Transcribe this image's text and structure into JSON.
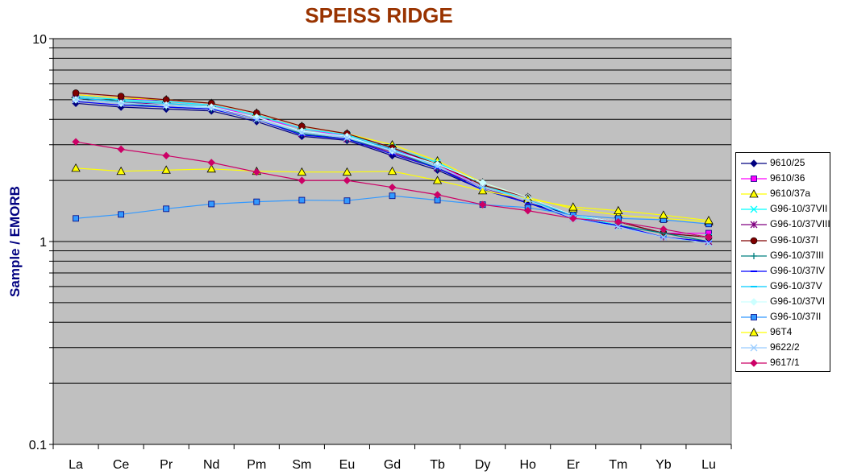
{
  "chart_data": {
    "type": "line",
    "title": "SPEISS RIDGE",
    "ylabel": "Sample / EMORB",
    "xlabel": "",
    "y_scale": "log",
    "ylim": [
      0.1,
      10
    ],
    "y_ticks": [
      "0.1",
      "1",
      "10"
    ],
    "categories": [
      "La",
      "Ce",
      "Pr",
      "Nd",
      "Pm",
      "Sm",
      "Eu",
      "Gd",
      "Tb",
      "Dy",
      "Ho",
      "Er",
      "Tm",
      "Yb",
      "Lu"
    ],
    "legend_position": "right",
    "plot_background": "#c0c0c0",
    "series": [
      {
        "name": "9610/25",
        "color": "#000080",
        "marker": "diamond",
        "values": [
          4.8,
          4.6,
          4.5,
          4.4,
          3.9,
          3.3,
          3.15,
          2.65,
          2.25,
          1.8,
          1.55,
          1.35,
          1.25,
          1.1,
          1.05
        ]
      },
      {
        "name": "9610/36",
        "color": "#ff00ff",
        "marker": "square",
        "values": [
          5.3,
          5.1,
          4.9,
          4.7,
          4.1,
          3.6,
          3.3,
          2.85,
          2.4,
          1.85,
          1.6,
          1.35,
          1.25,
          1.1,
          1.1
        ]
      },
      {
        "name": "9610/37a",
        "color": "#ffff00",
        "marker": "triangle",
        "values": [
          5.3,
          5.1,
          5.0,
          4.8,
          4.3,
          3.7,
          3.4,
          3.0,
          2.5,
          1.95,
          1.65,
          1.45,
          1.35,
          1.3,
          1.25
        ]
      },
      {
        "name": "G96-10/37VII",
        "color": "#00ffff",
        "marker": "x",
        "values": [
          5.2,
          5.0,
          4.9,
          4.7,
          4.2,
          3.6,
          3.35,
          2.9,
          2.45,
          1.9,
          1.6,
          1.35,
          1.2,
          1.1,
          1.05
        ]
      },
      {
        "name": "G96-10/37VIII",
        "color": "#800080",
        "marker": "star",
        "values": [
          5.1,
          4.9,
          4.7,
          4.6,
          4.0,
          3.4,
          3.2,
          2.75,
          2.3,
          1.85,
          1.55,
          1.3,
          1.2,
          1.05,
          1.0
        ]
      },
      {
        "name": "G96-10/37I",
        "color": "#800000",
        "marker": "circle",
        "values": [
          5.4,
          5.2,
          5.0,
          4.8,
          4.3,
          3.7,
          3.4,
          2.9,
          2.4,
          1.9,
          1.65,
          1.35,
          1.25,
          1.1,
          1.05
        ]
      },
      {
        "name": "G96-10/37III",
        "color": "#008080",
        "marker": "plus",
        "values": [
          5.0,
          4.8,
          4.6,
          4.5,
          4.0,
          3.4,
          3.2,
          2.8,
          2.3,
          1.8,
          1.55,
          1.3,
          1.2,
          1.1,
          1.0
        ]
      },
      {
        "name": "G96-10/37IV",
        "color": "#0000ff",
        "marker": "dash",
        "values": [
          4.9,
          4.7,
          4.6,
          4.5,
          4.0,
          3.35,
          3.2,
          2.7,
          2.3,
          1.8,
          1.55,
          1.3,
          1.2,
          1.05,
          1.0
        ]
      },
      {
        "name": "G96-10/37V",
        "color": "#00ccff",
        "marker": "dash",
        "values": [
          5.1,
          4.9,
          4.8,
          4.6,
          4.1,
          3.5,
          3.3,
          2.85,
          2.35,
          1.85,
          1.6,
          1.35,
          1.25,
          1.15,
          1.05
        ]
      },
      {
        "name": "G96-10/37VI",
        "color": "#ccffff",
        "marker": "diamond",
        "values": [
          5.0,
          4.8,
          4.7,
          4.6,
          4.1,
          3.5,
          3.3,
          2.8,
          2.4,
          1.95,
          1.65,
          1.35,
          1.25,
          1.15,
          1.05
        ]
      },
      {
        "name": "G96-10/37II",
        "color": "#3399ff",
        "marker": "square",
        "values": [
          1.3,
          1.36,
          1.45,
          1.53,
          1.57,
          1.6,
          1.59,
          1.68,
          1.6,
          1.52,
          1.47,
          1.35,
          1.3,
          1.28,
          1.22
        ]
      },
      {
        "name": "96T4",
        "color": "#ffff00",
        "marker": "triangle",
        "values": [
          2.3,
          2.22,
          2.25,
          2.28,
          2.22,
          2.2,
          2.2,
          2.22,
          2.0,
          1.78,
          1.62,
          1.48,
          1.42,
          1.35,
          1.27
        ]
      },
      {
        "name": "9622/2",
        "color": "#99ccff",
        "marker": "x",
        "values": [
          5.0,
          4.8,
          4.7,
          4.55,
          4.0,
          3.45,
          3.25,
          2.8,
          2.35,
          1.85,
          1.6,
          1.3,
          1.18,
          1.05,
          0.98
        ]
      },
      {
        "name": "9617/1",
        "color": "#cc0066",
        "marker": "diamond",
        "values": [
          3.1,
          2.85,
          2.65,
          2.45,
          2.2,
          2.0,
          2.0,
          1.85,
          1.7,
          1.52,
          1.42,
          1.3,
          1.25,
          1.15,
          1.05
        ]
      }
    ]
  }
}
